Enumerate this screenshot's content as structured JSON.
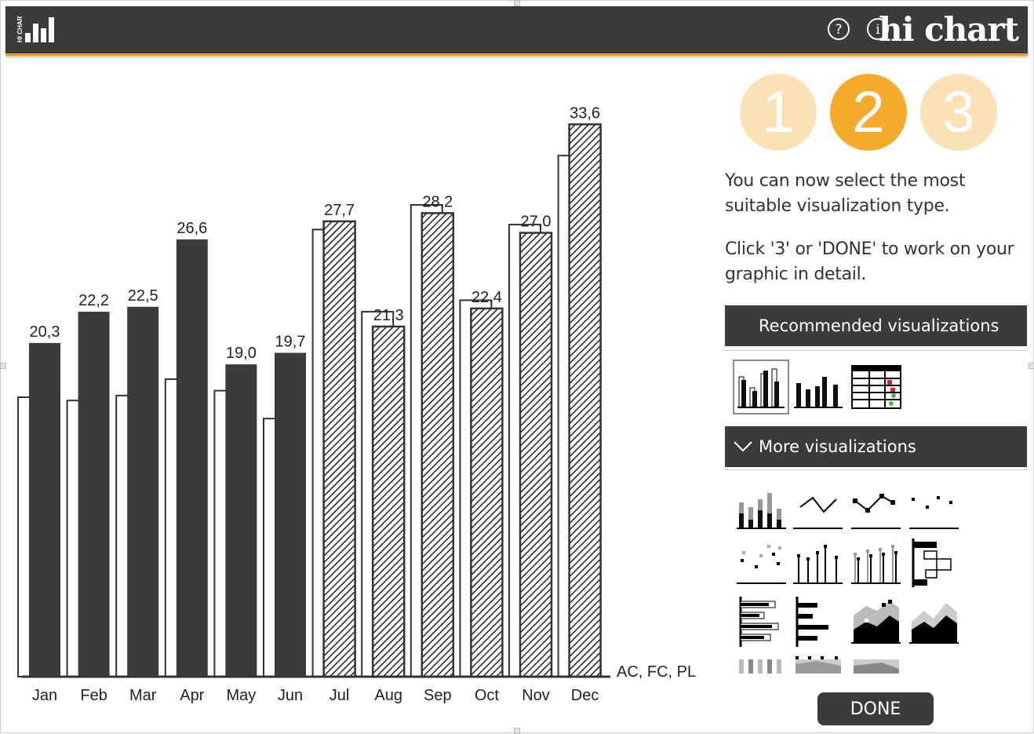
{
  "header": {
    "logo_text": "HI CHART",
    "brand": "hi chart",
    "help_icon": "question-circle-icon",
    "info_icon": "info-circle-icon",
    "colors": {
      "bar": "#3b3b3b",
      "accent": "#e8a21a"
    }
  },
  "steps": [
    {
      "label": "1",
      "state": "inactive"
    },
    {
      "label": "2",
      "state": "active"
    },
    {
      "label": "3",
      "state": "inactive"
    }
  ],
  "instructions": {
    "line1": "You can now select the most suitable visualization type.",
    "line2": "Click '3' or 'DONE' to work on your graphic in detail."
  },
  "recommended": {
    "title": "Recommended visualizations",
    "items": [
      "column-actual-plan-icon",
      "column-icon",
      "table-icon"
    ],
    "selected_index": 0
  },
  "more": {
    "title": "More visualizations",
    "toggle_icon": "chevron-down-icon",
    "items": [
      "stacked-column-icon",
      "line-icon",
      "line-markers-icon",
      "dot-scatter-icon",
      "scatter-icon",
      "needle-icon",
      "needle-compare-icon",
      "waterfall-vertical-icon",
      "bar-compare-icon",
      "bar-icon",
      "area-markers-icon",
      "area-icon",
      "partial-icon-1",
      "partial-icon-2",
      "partial-icon-3"
    ]
  },
  "done_label": "DONE",
  "chart_data": {
    "type": "bar",
    "categories": [
      "Jan",
      "Feb",
      "Mar",
      "Apr",
      "May",
      "Jun",
      "Jul",
      "Aug",
      "Sep",
      "Oct",
      "Nov",
      "Dec"
    ],
    "series": [
      {
        "name": "AC",
        "values": [
          20.3,
          22.2,
          22.5,
          26.6,
          19.0,
          19.7,
          null,
          null,
          null,
          null,
          null,
          null
        ],
        "style": "solid",
        "color": "#3b3b3b"
      },
      {
        "name": "FC",
        "values": [
          null,
          null,
          null,
          null,
          null,
          null,
          27.7,
          21.3,
          28.2,
          22.4,
          27.0,
          33.6
        ],
        "style": "hatched"
      },
      {
        "name": "PL",
        "values": [
          17.0,
          16.8,
          17.1,
          18.1,
          17.4,
          15.7,
          27.2,
          22.2,
          28.7,
          22.9,
          27.5,
          31.7
        ],
        "style": "outline"
      }
    ],
    "data_labels": [
      "20,3",
      "22,2",
      "22,5",
      "26,6",
      "19,0",
      "19,7",
      "27,7",
      "21,3",
      "28,2",
      "22,4",
      "27,0",
      "33,6"
    ],
    "scenario_label": "AC, FC, PL",
    "ylim": [
      0,
      34
    ],
    "grid": false
  }
}
